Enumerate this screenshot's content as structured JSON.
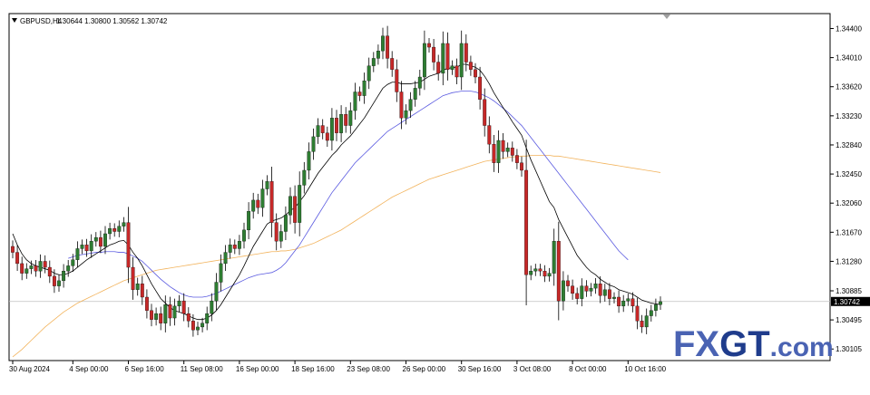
{
  "header": {
    "symbol_timeframe": "GBPUSD,H4",
    "ohlc": "1.30644 1.30800 1.30562 1.30742"
  },
  "logo": {
    "brand": "FXGT",
    "suffix": ".com",
    "colors": {
      "fx": "#4a63b3",
      "gt": "#1f3c8c",
      "suffix": "#4a63b3"
    }
  },
  "colors": {
    "bull": "#2e7d32",
    "bear": "#c62828",
    "wick": "#000000",
    "ma_fast": "#000000",
    "ma_mid": "#5a5ae0",
    "ma_slow": "#f2b35c",
    "price_line": "#c0c0c0",
    "current_price_bg": "#000000"
  },
  "chart_data": {
    "type": "candlestick",
    "symbol": "GBPUSD",
    "timeframe": "H4",
    "ylim": [
      1.2995,
      1.346
    ],
    "y_ticks": [
      "1.34400",
      "1.34010",
      "1.33620",
      "1.33230",
      "1.32840",
      "1.32450",
      "1.32060",
      "1.31670",
      "1.31280",
      "1.30885",
      "1.30495",
      "1.30105"
    ],
    "current_price": "1.30742",
    "x_ticks": [
      {
        "index": 0,
        "label": "30 Aug 2024"
      },
      {
        "index": 13,
        "label": "4 Sep 00:00"
      },
      {
        "index": 25,
        "label": "6 Sep 16:00"
      },
      {
        "index": 37,
        "label": "11 Sep 08:00"
      },
      {
        "index": 49,
        "label": "16 Sep 00:00"
      },
      {
        "index": 61,
        "label": "18 Sep 16:00"
      },
      {
        "index": 73,
        "label": "23 Sep 08:00"
      },
      {
        "index": 85,
        "label": "26 Sep 00:00"
      },
      {
        "index": 97,
        "label": "30 Sep 16:00"
      },
      {
        "index": 109,
        "label": "3 Oct 08:00"
      },
      {
        "index": 121,
        "label": "8 Oct 00:00"
      },
      {
        "index": 133,
        "label": "10 Oct 16:00"
      }
    ],
    "close": [
      1.314,
      1.3125,
      1.3112,
      1.3118,
      1.3122,
      1.3115,
      1.3128,
      1.312,
      1.3108,
      1.3095,
      1.3102,
      1.3115,
      1.3122,
      1.313,
      1.3145,
      1.315,
      1.3142,
      1.3155,
      1.316,
      1.3148,
      1.3165,
      1.3172,
      1.3168,
      1.3175,
      1.318,
      1.312,
      1.309,
      1.3098,
      1.308,
      1.3062,
      1.305,
      1.3058,
      1.3045,
      1.307,
      1.3052,
      1.3068,
      1.3075,
      1.3058,
      1.3048,
      1.3036,
      1.304,
      1.3045,
      1.3058,
      1.3075,
      1.31,
      1.3125,
      1.314,
      1.315,
      1.3145,
      1.3155,
      1.317,
      1.3195,
      1.321,
      1.32,
      1.3225,
      1.3235,
      1.318,
      1.3155,
      1.3168,
      1.319,
      1.3215,
      1.318,
      1.323,
      1.325,
      1.3275,
      1.3295,
      1.331,
      1.33,
      1.329,
      1.332,
      1.33,
      1.3325,
      1.331,
      1.333,
      1.3355,
      1.335,
      1.337,
      1.339,
      1.34,
      1.341,
      1.343,
      1.34,
      1.3385,
      1.3355,
      1.332,
      1.333,
      1.3345,
      1.336,
      1.3375,
      1.342,
      1.3415,
      1.3395,
      1.338,
      1.342,
      1.3385,
      1.339,
      1.3375,
      1.342,
      1.3395,
      1.3385,
      1.3375,
      1.3345,
      1.331,
      1.3285,
      1.326,
      1.329,
      1.3275,
      1.328,
      1.327,
      1.326,
      1.325,
      1.311,
      1.3115,
      1.3118,
      1.3115,
      1.3108,
      1.3112,
      1.3155,
      1.3075,
      1.3102,
      1.3095,
      1.3085,
      1.3078,
      1.3095,
      1.3088,
      1.3092,
      1.3098,
      1.3082,
      1.309,
      1.3078,
      1.308,
      1.3068,
      1.3075,
      1.3078,
      1.3068,
      1.3048,
      1.304,
      1.3055,
      1.3062,
      1.307,
      1.3074
    ],
    "ma_fast": [
      1.3165,
      1.315,
      1.3138,
      1.313,
      1.3125,
      1.3122,
      1.312,
      1.3118,
      1.3116,
      1.3112,
      1.311,
      1.311,
      1.3112,
      1.3115,
      1.312,
      1.3125,
      1.313,
      1.3134,
      1.3138,
      1.3142,
      1.3146,
      1.315,
      1.3152,
      1.3155,
      1.3156,
      1.315,
      1.314,
      1.3132,
      1.3122,
      1.311,
      1.3098,
      1.3088,
      1.3078,
      1.3072,
      1.3066,
      1.3062,
      1.306,
      1.3058,
      1.3055,
      1.3052,
      1.305,
      1.305,
      1.3052,
      1.3056,
      1.3062,
      1.307,
      1.308,
      1.309,
      1.31,
      1.311,
      1.3122,
      1.3135,
      1.3148,
      1.3158,
      1.3168,
      1.3178,
      1.3182,
      1.3184,
      1.3186,
      1.319,
      1.3196,
      1.32,
      1.3208,
      1.3216,
      1.3226,
      1.3236,
      1.3246,
      1.3254,
      1.3262,
      1.327,
      1.3276,
      1.3284,
      1.329,
      1.3296,
      1.3304,
      1.3312,
      1.332,
      1.333,
      1.334,
      1.335,
      1.336,
      1.3365,
      1.3368,
      1.3368,
      1.3366,
      1.3366,
      1.3366,
      1.3367,
      1.3368,
      1.3372,
      1.3376,
      1.3378,
      1.338,
      1.3385,
      1.3386,
      1.3388,
      1.3388,
      1.3392,
      1.3392,
      1.339,
      1.3388,
      1.3384,
      1.3376,
      1.3366,
      1.3354,
      1.3344,
      1.3334,
      1.3325,
      1.3315,
      1.3306,
      1.3297,
      1.328,
      1.3264,
      1.325,
      1.3236,
      1.3222,
      1.3208,
      1.32,
      1.3184,
      1.3172,
      1.316,
      1.3148,
      1.3136,
      1.3128,
      1.312,
      1.3114,
      1.311,
      1.3104,
      1.31,
      1.3096,
      1.3094,
      1.309,
      1.3088,
      1.3086,
      1.3084,
      1.308,
      1.3076,
      1.3074,
      1.3072,
      1.3071,
      1.307
    ],
    "ma_mid": [
      null,
      null,
      null,
      null,
      null,
      null,
      null,
      null,
      null,
      null,
      null,
      null,
      1.3132,
      1.3134,
      1.3136,
      1.3137,
      1.3138,
      1.3139,
      1.314,
      1.314,
      1.3141,
      1.3141,
      1.3141,
      1.314,
      1.314,
      1.3138,
      1.3135,
      1.3132,
      1.3128,
      1.3122,
      1.3116,
      1.311,
      1.3104,
      1.3099,
      1.3094,
      1.309,
      1.3086,
      1.3083,
      1.3081,
      1.308,
      1.308,
      1.308,
      1.3081,
      1.3083,
      1.3085,
      1.3088,
      1.3091,
      1.3094,
      1.3097,
      1.31,
      1.3103,
      1.3106,
      1.3108,
      1.311,
      1.3111,
      1.3112,
      1.3113,
      1.3116,
      1.312,
      1.3126,
      1.3134,
      1.3142,
      1.315,
      1.316,
      1.317,
      1.318,
      1.319,
      1.32,
      1.321,
      1.322,
      1.3228,
      1.3236,
      1.3244,
      1.3252,
      1.326,
      1.3266,
      1.3272,
      1.3278,
      1.3284,
      1.329,
      1.3296,
      1.3302,
      1.3306,
      1.331,
      1.3314,
      1.3318,
      1.3322,
      1.3326,
      1.333,
      1.3334,
      1.3338,
      1.3342,
      1.3346,
      1.335,
      1.3352,
      1.3354,
      1.3355,
      1.3356,
      1.3356,
      1.3356,
      1.3355,
      1.3353,
      1.335,
      1.3347,
      1.3343,
      1.3338,
      1.3333,
      1.3328,
      1.3322,
      1.3316,
      1.331,
      1.3302,
      1.3294,
      1.3286,
      1.3278,
      1.327,
      1.3262,
      1.3254,
      1.3246,
      1.3238,
      1.323,
      1.3222,
      1.3214,
      1.3206,
      1.3198,
      1.319,
      1.3182,
      1.3174,
      1.3166,
      1.3158,
      1.315,
      1.3142,
      1.3136,
      1.313
    ],
    "ma_slow": [
      1.3,
      1.3005,
      1.301,
      1.3016,
      1.3022,
      1.3028,
      1.3034,
      1.304,
      1.3045,
      1.305,
      1.3055,
      1.306,
      1.3064,
      1.3068,
      1.3072,
      1.3075,
      1.3078,
      1.3081,
      1.3084,
      1.3087,
      1.309,
      1.3093,
      1.3096,
      1.3099,
      1.3102,
      1.3104,
      1.3106,
      1.3108,
      1.311,
      1.3112,
      1.3114,
      1.3116,
      1.3117,
      1.3118,
      1.3119,
      1.312,
      1.3121,
      1.3122,
      1.3123,
      1.3124,
      1.3125,
      1.3126,
      1.3127,
      1.3128,
      1.3129,
      1.313,
      1.3131,
      1.3132,
      1.3133,
      1.3134,
      1.3135,
      1.3136,
      1.3137,
      1.3138,
      1.3139,
      1.314,
      1.3141,
      1.3141,
      1.3142,
      1.3142,
      1.3143,
      1.3144,
      1.3146,
      1.3148,
      1.315,
      1.3152,
      1.3155,
      1.3158,
      1.3161,
      1.3164,
      1.3167,
      1.317,
      1.3174,
      1.3178,
      1.3182,
      1.3186,
      1.319,
      1.3194,
      1.3198,
      1.3202,
      1.3206,
      1.321,
      1.3214,
      1.3217,
      1.322,
      1.3223,
      1.3226,
      1.3229,
      1.3232,
      1.3235,
      1.3238,
      1.324,
      1.3242,
      1.3244,
      1.3246,
      1.3248,
      1.325,
      1.3252,
      1.3254,
      1.3256,
      1.3258,
      1.326,
      1.3262,
      1.3263,
      1.3264,
      1.3265,
      1.3266,
      1.3267,
      1.3268,
      1.3268,
      1.3269,
      1.3269,
      1.327,
      1.327,
      1.327,
      1.327,
      1.327,
      1.3269,
      1.3269,
      1.3268,
      1.3267,
      1.3266,
      1.3265,
      1.3264,
      1.3263,
      1.3262,
      1.3261,
      1.326,
      1.3259,
      1.3258,
      1.3257,
      1.3256,
      1.3255,
      1.3254,
      1.3253,
      1.3252,
      1.3251,
      1.325,
      1.3249,
      1.3248,
      1.3247
    ]
  }
}
